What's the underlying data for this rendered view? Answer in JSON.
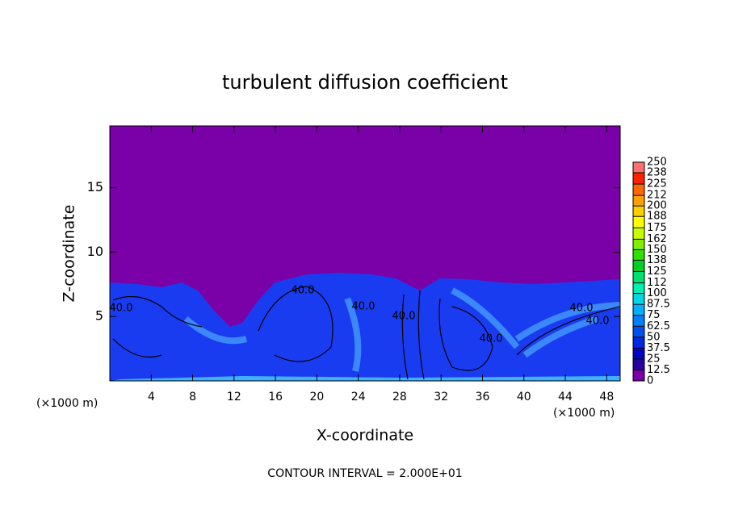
{
  "chart_data": {
    "type": "contour",
    "title": "turbulent diffusion coefficient",
    "x_label": "X-coordinate",
    "y_label": "Z-coordinate",
    "x_unit": "(×1000 m)",
    "x_unit_right": "(×1000 m)",
    "footer": "CONTOUR INTERVAL = 2.000E+01",
    "contour_labels": [
      "40.0",
      "40.0",
      "40.0",
      "40.0",
      "40.0",
      "40.0",
      "40.0"
    ],
    "xlim": [
      0,
      49.3
    ],
    "xticks": [
      4,
      8,
      12,
      16,
      20,
      24,
      28,
      32,
      36,
      40,
      44,
      48
    ],
    "ylim": [
      0,
      19.8
    ],
    "yticks": [
      5,
      10,
      15
    ],
    "colorbar": {
      "levels": [
        0,
        12.5,
        25,
        37.5,
        50,
        62.5,
        75,
        87.5,
        100,
        112,
        125,
        138,
        150,
        162,
        175,
        188,
        200,
        212,
        225,
        238,
        250
      ],
      "colors": [
        "#7a00a8",
        "#2a00a0",
        "#0000c8",
        "#0028e0",
        "#0050f0",
        "#0080ff",
        "#00b0ff",
        "#00d8e8",
        "#00f0b0",
        "#00e070",
        "#00d020",
        "#30e000",
        "#80f000",
        "#c8ff00",
        "#ffff00",
        "#ffd000",
        "#ffa000",
        "#ff6800",
        "#ff2000",
        "#ff7070"
      ]
    }
  }
}
